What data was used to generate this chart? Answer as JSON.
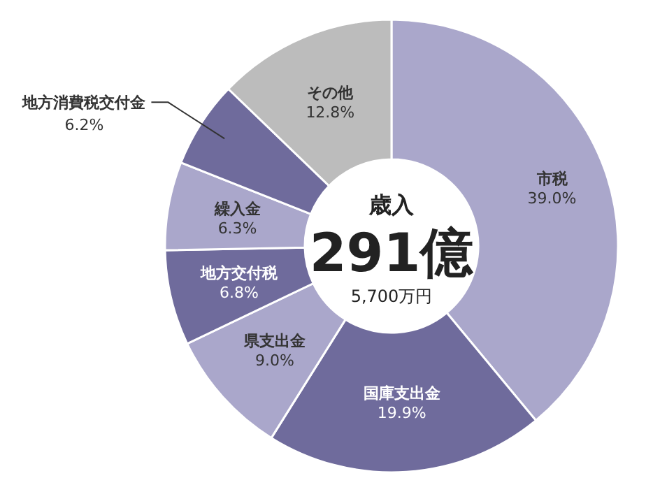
{
  "chart_data": {
    "type": "donut",
    "categories": [
      "市税",
      "国庫支出金",
      "県支出金",
      "地方交付税",
      "繰入金",
      "地方消費税交付金",
      "その他"
    ],
    "values": [
      39.0,
      19.9,
      9.0,
      6.8,
      6.3,
      6.2,
      12.8
    ],
    "colors": [
      "#aaa7cb",
      "#6f6b9c",
      "#aaa7cb",
      "#6f6b9c",
      "#aaa7cb",
      "#6f6b9c",
      "#bcbcbc"
    ],
    "value_labels": [
      "39.0%",
      "19.9%",
      "9.0%",
      "6.8%",
      "6.3%",
      "6.2%",
      "12.8%"
    ],
    "annotations": [
      "歳入",
      "291億",
      "5,700万円"
    ]
  }
}
